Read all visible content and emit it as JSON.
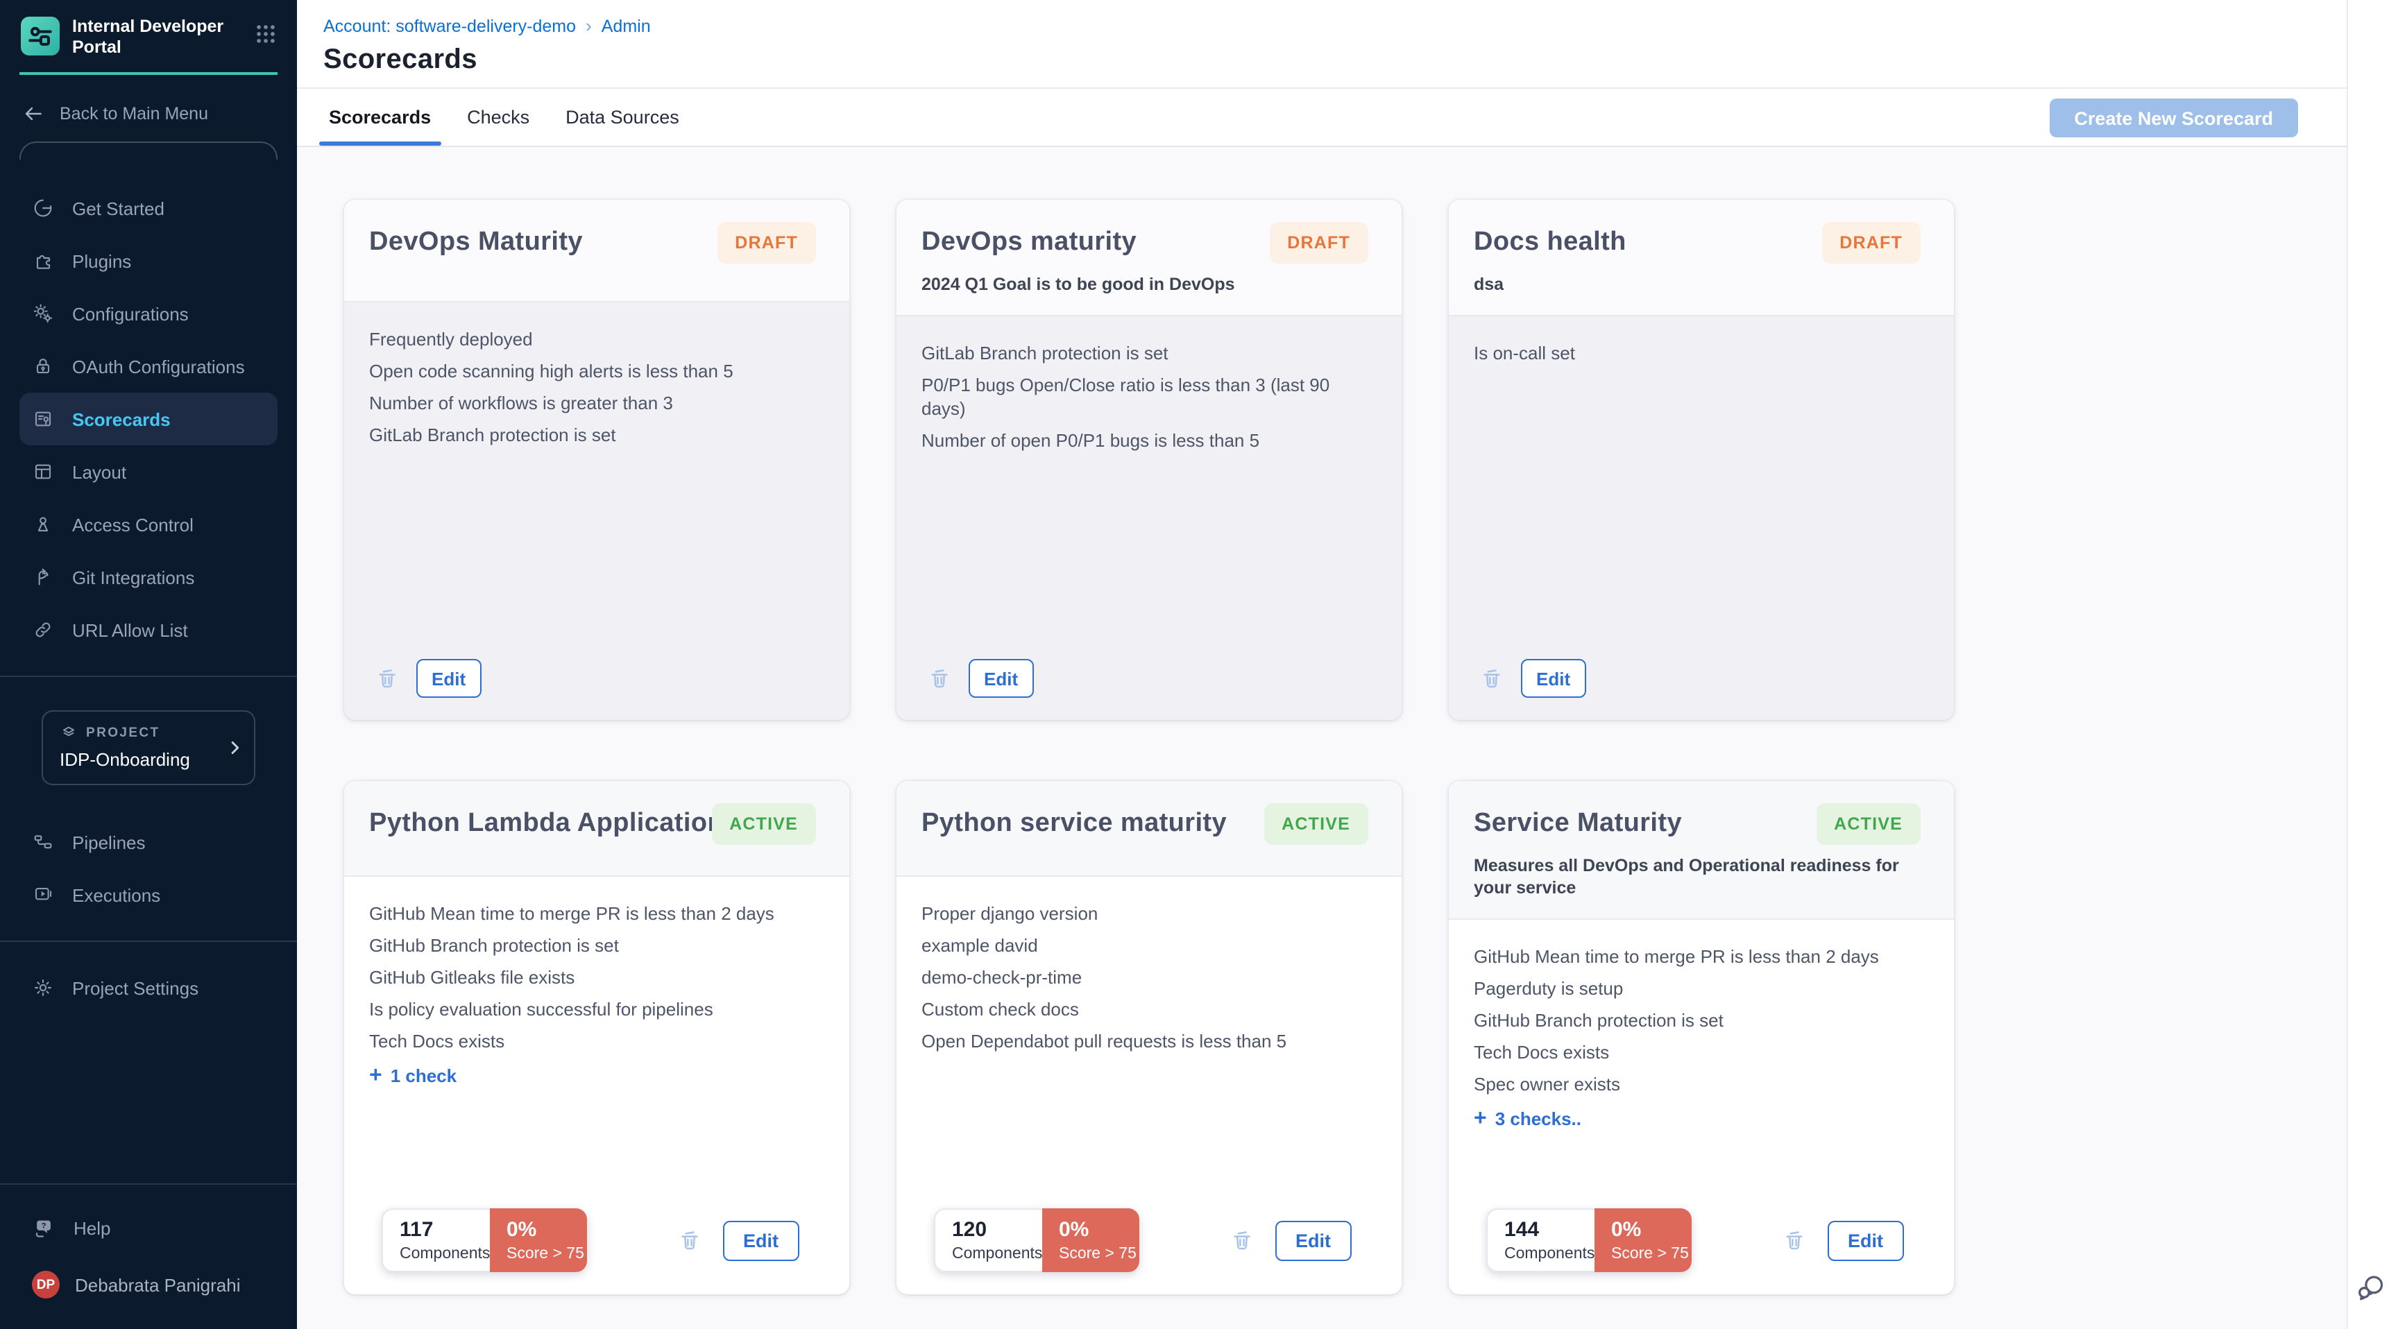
{
  "colors": {
    "sidebar_bg": "#0c1a2d",
    "teal_accent": "#3fc6b0",
    "active_nav_text": "#47c8f4",
    "link_blue": "#0b6fd0",
    "action_blue": "#2b6fd4",
    "create_btn_bg": "#9ebfe9",
    "draft_text": "#e8763a",
    "draft_bg": "#fdf1e6",
    "active_text": "#42a74c",
    "active_bg": "#e5f4e0",
    "score_red": "#dd695a",
    "avatar_red": "#c7423c"
  },
  "sidebar": {
    "app_title": "Internal Developer Portal",
    "back_label": "Back to Main Menu",
    "nav_primary": [
      {
        "label": "Get Started",
        "icon": "get-started"
      },
      {
        "label": "Plugins",
        "icon": "plugins"
      },
      {
        "label": "Configurations",
        "icon": "configurations"
      },
      {
        "label": "OAuth Configurations",
        "icon": "oauth"
      },
      {
        "label": "Scorecards",
        "icon": "scorecards",
        "active": true
      },
      {
        "label": "Layout",
        "icon": "layout"
      },
      {
        "label": "Access Control",
        "icon": "access-control"
      },
      {
        "label": "Git Integrations",
        "icon": "git-integrations"
      },
      {
        "label": "URL Allow List",
        "icon": "url-allow-list"
      }
    ],
    "project": {
      "label": "PROJECT",
      "name": "IDP-Onboarding"
    },
    "nav_secondary": [
      {
        "label": "Pipelines",
        "icon": "pipelines"
      },
      {
        "label": "Executions",
        "icon": "executions"
      }
    ],
    "nav_tertiary": [
      {
        "label": "Project Settings",
        "icon": "project-settings"
      }
    ],
    "help_label": "Help",
    "user": {
      "initials": "DP",
      "name": "Debabrata Panigrahi"
    }
  },
  "header": {
    "breadcrumb": [
      {
        "label": "Account: software-delivery-demo"
      },
      {
        "label": "Admin"
      }
    ],
    "title": "Scorecards"
  },
  "tabs": [
    {
      "label": "Scorecards",
      "active": true
    },
    {
      "label": "Checks"
    },
    {
      "label": "Data Sources"
    }
  ],
  "actions": {
    "create_label": "Create New Scorecard"
  },
  "footer_labels": {
    "components": "Components",
    "score": "Score > 75",
    "edit": "Edit"
  },
  "cards": [
    {
      "title": "DevOps Maturity",
      "status": "DRAFT",
      "description": "",
      "checks": [
        "Frequently deployed",
        "Open code scanning high alerts is less than 5",
        "Number of workflows is greater than 3",
        "GitLab Branch protection is set"
      ]
    },
    {
      "title": "DevOps maturity",
      "status": "DRAFT",
      "description": "2024 Q1 Goal is to be good in DevOps",
      "checks": [
        "GitLab Branch protection is set",
        "P0/P1 bugs Open/Close ratio is less than 3 (last 90 days)",
        "Number of open P0/P1 bugs is less than 5"
      ]
    },
    {
      "title": "Docs health",
      "status": "DRAFT",
      "description": "dsa",
      "checks": [
        "Is on-call set"
      ]
    },
    {
      "title": "Python Lambda Applications",
      "status": "ACTIVE",
      "description": "",
      "checks": [
        "GitHub Mean time to merge PR is less than 2 days",
        "GitHub Branch protection is set",
        "GitHub Gitleaks file exists",
        "Is policy evaluation successful for pipelines",
        "Tech Docs exists"
      ],
      "more_label": "1 check",
      "components": "117",
      "score_pct": "0%"
    },
    {
      "title": "Python service maturity",
      "status": "ACTIVE",
      "description": "",
      "checks": [
        "Proper django version",
        "example david",
        "demo-check-pr-time",
        "Custom check docs",
        "Open Dependabot pull requests is less than 5"
      ],
      "components": "120",
      "score_pct": "0%"
    },
    {
      "title": "Service Maturity",
      "status": "ACTIVE",
      "description": "Measures all DevOps and Operational readiness for your service",
      "checks": [
        "GitHub Mean time to merge PR is less than 2 days",
        "Pagerduty is setup",
        "GitHub Branch protection is set",
        "Tech Docs exists",
        "Spec owner exists"
      ],
      "more_label": "3 checks..",
      "components": "144",
      "score_pct": "0%"
    }
  ]
}
